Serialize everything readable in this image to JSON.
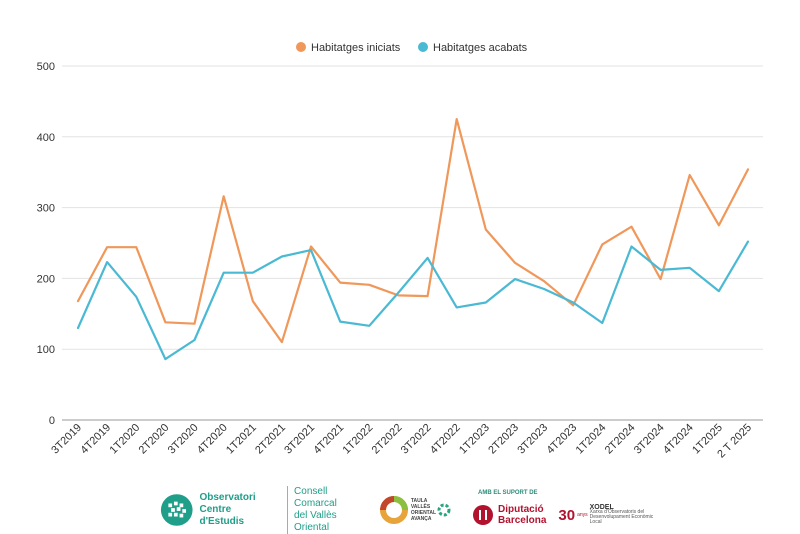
{
  "chart_data": {
    "type": "line",
    "categories": [
      "3T2019",
      "4T2019",
      "1T2020",
      "2T2020",
      "3T2020",
      "4T2020",
      "1T2021",
      "2T2021",
      "3T2021",
      "4T2021",
      "1T2022",
      "2T2022",
      "3T2022",
      "4T2022",
      "1T2023",
      "2T2023",
      "3T2023",
      "4T2023",
      "1T2024",
      "2T2024",
      "3T2024",
      "4T2024",
      "1T2025",
      "2 T 2025"
    ],
    "series": [
      {
        "name": "Habitatges iniciats",
        "color": "#f0975a",
        "values": [
          168,
          244,
          244,
          138,
          136,
          316,
          168,
          110,
          245,
          194,
          191,
          176,
          175,
          425,
          269,
          222,
          196,
          162,
          248,
          273,
          199,
          346,
          275,
          354
        ]
      },
      {
        "name": "Habitatges acabats",
        "color": "#4ab9d3",
        "values": [
          130,
          223,
          174,
          86,
          113,
          208,
          208,
          231,
          240,
          139,
          133,
          180,
          229,
          159,
          166,
          199,
          185,
          166,
          137,
          245,
          212,
          215,
          182,
          252
        ]
      }
    ],
    "ylim": [
      0,
      500
    ],
    "yticks": [
      0,
      100,
      200,
      300,
      400,
      500
    ],
    "legend_position": "top-center",
    "grid": true
  },
  "footer": {
    "observatori_line1": "Observatori",
    "observatori_line2": "Centre d'Estudis",
    "consell_line1": "Consell Comarcal",
    "consell_line2": "del Vallès Oriental",
    "valles_line1": "TAULA",
    "valles_line2": "VALLÈS",
    "valles_line3": "ORIENTAL",
    "valles_line4": "AVANÇA",
    "suport": "AMB EL SUPORT DE",
    "diputacio_line1": "Diputació",
    "diputacio_line2": "Barcelona",
    "xodel_num": "30",
    "xodel_anys": "anys",
    "xodel_title": "XODEL",
    "xodel_line1": "Xarxa d'Observatoris del",
    "xodel_line2": "Desenvolupament Econòmic Local"
  }
}
